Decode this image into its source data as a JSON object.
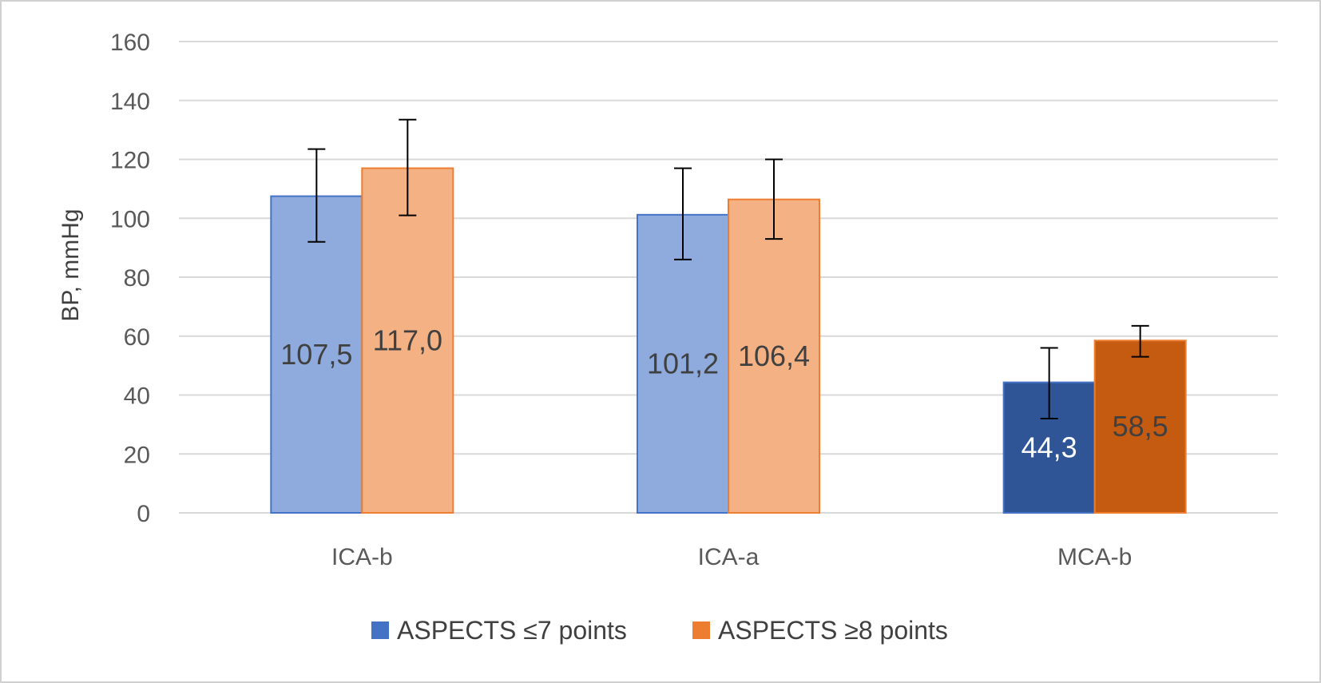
{
  "chart_data": {
    "type": "bar",
    "title": "",
    "xlabel": "",
    "ylabel": "BP, mmHg",
    "ylim": [
      0,
      160
    ],
    "yticks": [
      0,
      20,
      40,
      60,
      80,
      100,
      120,
      140,
      160
    ],
    "grid": true,
    "legend_position": "bottom",
    "categories": [
      "ICA-b",
      "ICA-a",
      "MCA-b"
    ],
    "series": [
      {
        "name": "ASPECTS ≤7 points",
        "legend_color": "#4472C4",
        "bar_colors": [
          "#8FAADC",
          "#8FAADC",
          "#2F5597"
        ],
        "edge_color": "#4472C4",
        "label_colors": [
          "#404040",
          "#404040",
          "#FFFFFF"
        ],
        "values": [
          107.5,
          101.2,
          44.3
        ],
        "labels": [
          "107,5",
          "101,2",
          "44,3"
        ],
        "error_low": [
          92,
          86,
          32
        ],
        "error_high": [
          123.5,
          117,
          56
        ]
      },
      {
        "name": "ASPECTS ≥8 points",
        "legend_color": "#ED7D31",
        "bar_colors": [
          "#F4B183",
          "#F4B183",
          "#C55A11"
        ],
        "edge_color": "#ED7D31",
        "label_colors": [
          "#404040",
          "#404040",
          "#404040"
        ],
        "values": [
          117.0,
          106.4,
          58.5
        ],
        "labels": [
          "117,0",
          "106,4",
          "58,5"
        ],
        "error_low": [
          101,
          93,
          53
        ],
        "error_high": [
          133.5,
          120,
          63.5
        ]
      }
    ]
  }
}
